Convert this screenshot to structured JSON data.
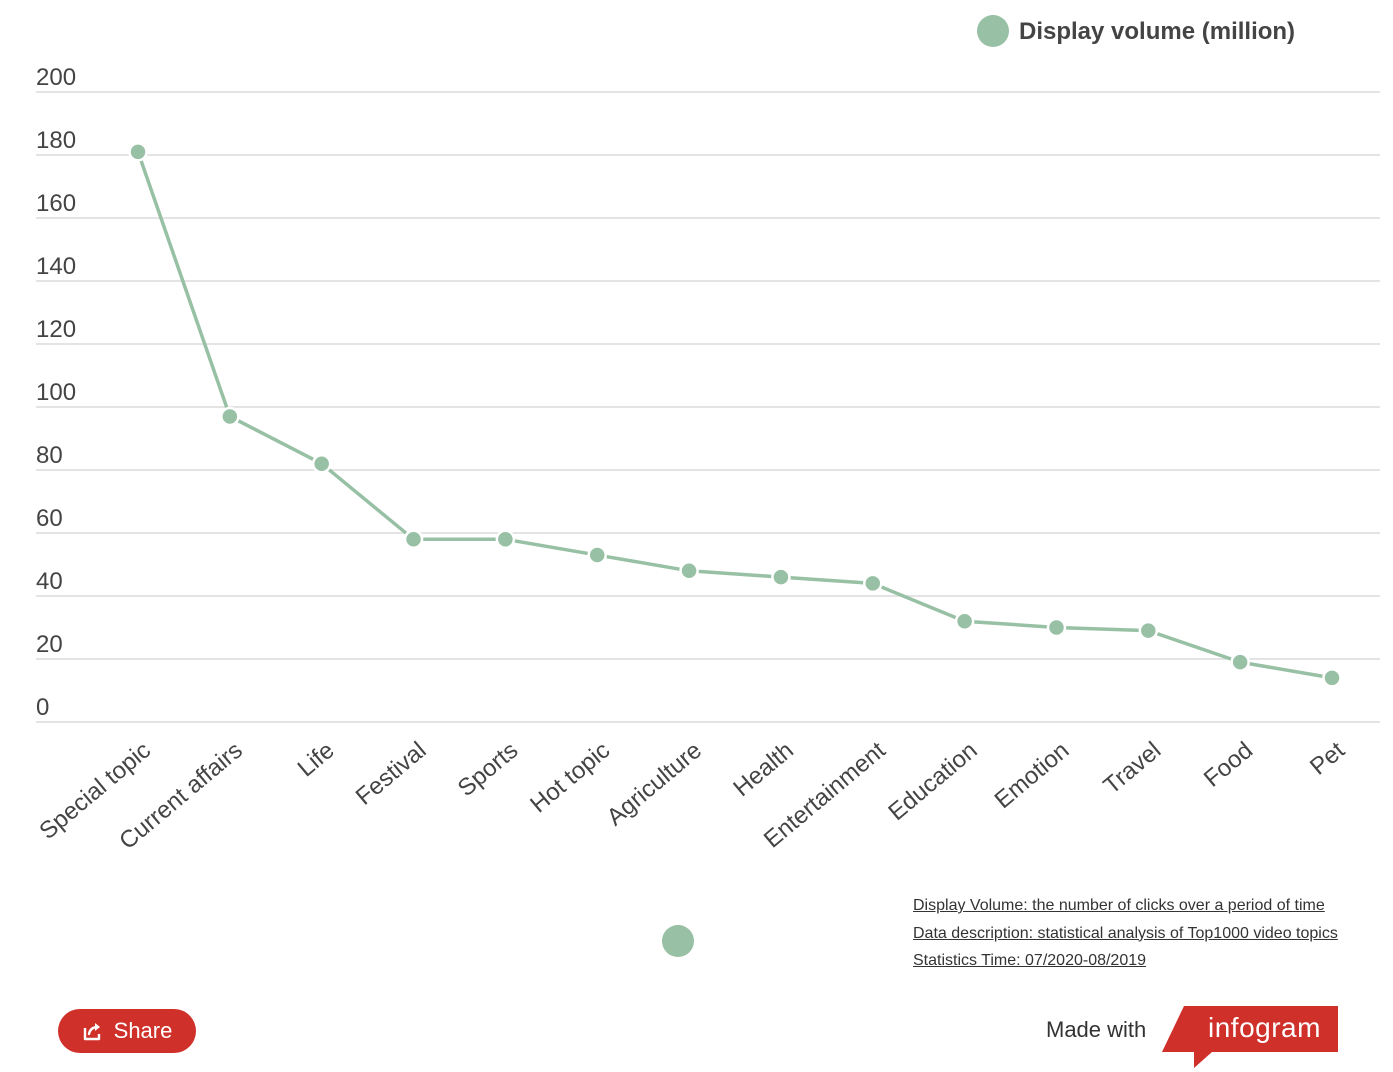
{
  "colors": {
    "series": "#97c0a4",
    "grid": "#dcdcdc",
    "axis_text": "#444444",
    "brand_red": "#d0302a"
  },
  "legend": {
    "label": "Display volume (million)",
    "placement": "top-right"
  },
  "chart_data": {
    "type": "line",
    "categories": [
      "Special topic",
      "Current affairs",
      "Life",
      "Festival",
      "Sports",
      "Hot topic",
      "Agriculture",
      "Health",
      "Entertainment",
      "Education",
      "Emotion",
      "Travel",
      "Food",
      "Pet"
    ],
    "series": [
      {
        "name": "Display volume (million)",
        "values": [
          181,
          97,
          82,
          58,
          58,
          53,
          48,
          46,
          44,
          32,
          30,
          29,
          19,
          14
        ]
      }
    ],
    "ylim": [
      0,
      200
    ],
    "yticks": [
      0,
      20,
      40,
      60,
      80,
      100,
      120,
      140,
      160,
      180,
      200
    ],
    "grid": true,
    "title": "",
    "xlabel": "",
    "ylabel": ""
  },
  "notes": [
    "Display Volume: the number of clicks over a period of time",
    "Data description: statistical analysis of Top1000 video topics",
    "Statistics Time: 07/2020-08/2019"
  ],
  "footer": {
    "share_label": "Share",
    "share_icon": "share-icon",
    "made_with": "Made with",
    "brand": "infogram"
  }
}
